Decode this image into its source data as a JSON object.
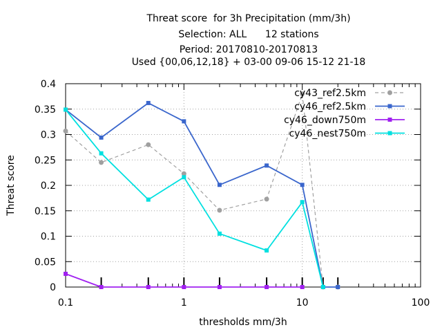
{
  "chart_data": {
    "type": "line",
    "title_lines": [
      "Threat score  for 3h Precipitation (mm/3h)",
      "Selection: ALL      12 stations",
      "Period: 20170810-20170813",
      "Used {00,06,12,18} + 03-00 09-06 15-12 21-18"
    ],
    "xlabel": "thresholds mm/3h",
    "ylabel": "Threat score",
    "x_scale": "log",
    "xlim": [
      0.1,
      100
    ],
    "ylim": [
      0,
      0.4
    ],
    "x_ticks": [
      0.1,
      1,
      10,
      100
    ],
    "x_tick_labels": [
      "0.1",
      "1",
      "10",
      "100"
    ],
    "y_ticks": [
      0,
      0.05,
      0.1,
      0.15,
      0.2,
      0.25,
      0.3,
      0.35,
      0.4
    ],
    "y_tick_labels": [
      "0",
      "0.05",
      "0.1",
      "0.15",
      "0.2",
      "0.25",
      "0.3",
      "0.35",
      "0.4"
    ],
    "threshold_marks": [
      0.2,
      0.5,
      1,
      2,
      5,
      10,
      15,
      20
    ],
    "grid": true,
    "legend_position": "top-right",
    "series": [
      {
        "name": "cy43_ref2.5km",
        "color": "#a0a0a0",
        "dashed": true,
        "x": [
          0.1,
          0.2,
          0.5,
          1,
          2,
          5,
          10,
          15,
          20
        ],
        "y": [
          0.307,
          0.245,
          0.28,
          0.223,
          0.151,
          0.173,
          0.38,
          0,
          0
        ]
      },
      {
        "name": "cy46_ref2.5km",
        "color": "#3a66cc",
        "dashed": false,
        "x": [
          0.1,
          0.2,
          0.5,
          1,
          2,
          5,
          10,
          15,
          20
        ],
        "y": [
          0.349,
          0.294,
          0.362,
          0.326,
          0.201,
          0.239,
          0.201,
          0,
          0
        ]
      },
      {
        "name": "cy46_down750m",
        "color": "#a020f0",
        "dashed": false,
        "x": [
          0.1,
          0.2,
          0.5,
          1,
          2,
          5,
          10
        ],
        "y": [
          0.026,
          0,
          0,
          0,
          0,
          0,
          0
        ]
      },
      {
        "name": "cy46_nest750m",
        "color": "#00e0e0",
        "dashed": false,
        "x": [
          0.1,
          0.2,
          0.5,
          1,
          2,
          5,
          10,
          15
        ],
        "y": [
          0.349,
          0.263,
          0.172,
          0.216,
          0.105,
          0.072,
          0.167,
          0
        ]
      }
    ]
  }
}
